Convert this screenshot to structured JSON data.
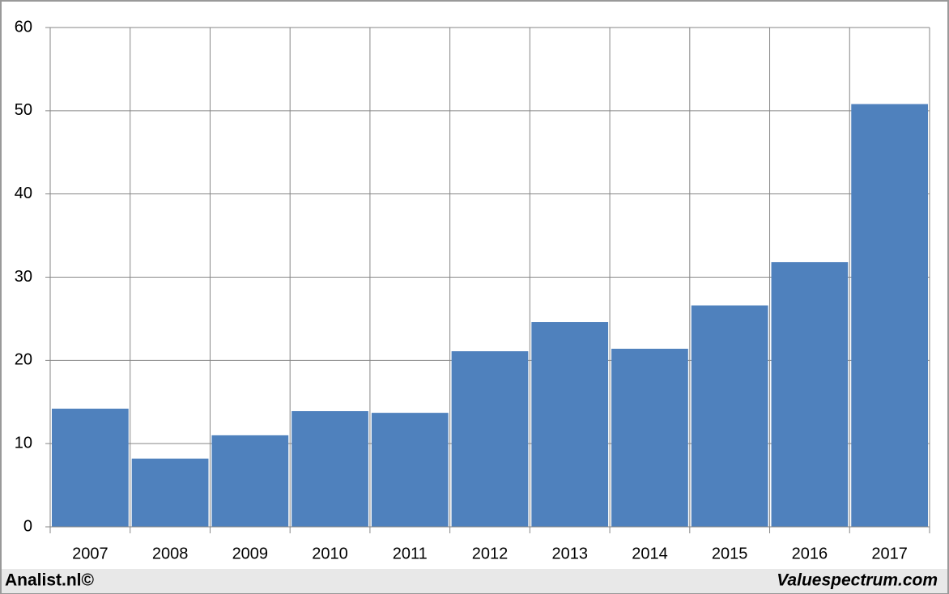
{
  "chart_data": {
    "type": "bar",
    "categories": [
      "2007",
      "2008",
      "2009",
      "2010",
      "2011",
      "2012",
      "2013",
      "2014",
      "2015",
      "2016",
      "2017"
    ],
    "values": [
      14.2,
      8.2,
      11.0,
      13.9,
      13.7,
      21.1,
      24.6,
      21.4,
      26.6,
      31.8,
      50.8
    ],
    "color": "#4f81bd",
    "ylim": [
      0,
      60
    ],
    "yticks": [
      0,
      10,
      20,
      30,
      40,
      50,
      60
    ],
    "grid": true
  },
  "footer": {
    "left": "Analist.nl©",
    "right": "Valuespectrum.com"
  }
}
